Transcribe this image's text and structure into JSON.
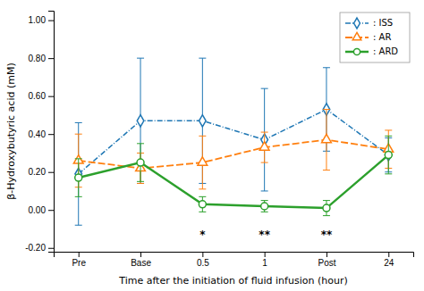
{
  "chart_data": {
    "type": "line",
    "categories": [
      "Pre",
      "Base",
      "0.5",
      "1",
      "Post",
      "24"
    ],
    "series": [
      {
        "name": ": ISS",
        "marker": "diamond",
        "line_style": "dash-dot",
        "values": [
          0.19,
          0.47,
          0.47,
          0.37,
          0.53,
          0.29
        ],
        "errors": [
          0.27,
          0.33,
          0.33,
          0.27,
          0.22,
          0.09
        ]
      },
      {
        "name": ": AR",
        "marker": "triangle",
        "line_style": "dashed",
        "values": [
          0.26,
          0.22,
          0.25,
          0.33,
          0.37,
          0.32
        ],
        "errors": [
          0.14,
          0.08,
          0.14,
          0.08,
          0.16,
          0.1
        ]
      },
      {
        "name": ": ARD",
        "marker": "circle",
        "line_style": "solid",
        "values": [
          0.17,
          0.25,
          0.03,
          0.02,
          0.01,
          0.29
        ],
        "errors": [
          0.1,
          0.1,
          0.04,
          0.03,
          0.04,
          0.1
        ]
      }
    ],
    "ylim": [
      -0.22,
      1.05
    ],
    "yticks": [
      {
        "value": -0.2,
        "label": "-0.20"
      },
      {
        "value": 0,
        "label": "0.00"
      },
      {
        "value": 0.2,
        "label": "0.20"
      },
      {
        "value": 0.4,
        "label": "0.40"
      },
      {
        "value": 0.6,
        "label": "0.60"
      },
      {
        "value": 0.8,
        "label": "0.80"
      },
      {
        "value": 1,
        "label": "1.00"
      }
    ],
    "y_label": "β-Hydroxybutyric acid (mM)",
    "x_label": "Time after the initiation of fluid infusion (hour)",
    "annotations": [
      {
        "text": "*",
        "category": "0.5",
        "y": -0.135
      },
      {
        "text": "**",
        "category": "1",
        "y": -0.135
      },
      {
        "text": "**",
        "category": "Post",
        "y": -0.135
      }
    ],
    "legend": "upper right",
    "grid": false
  }
}
